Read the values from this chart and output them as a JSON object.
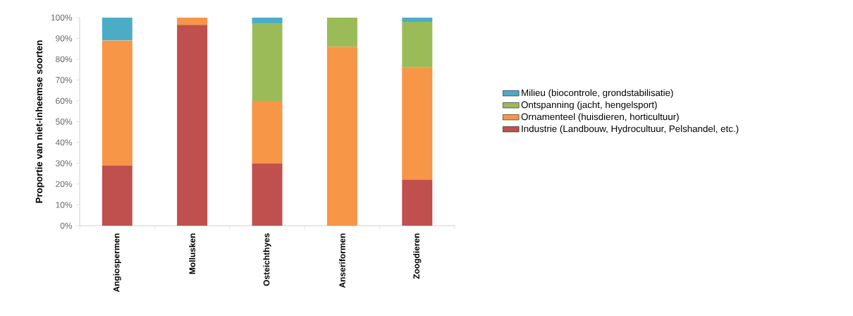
{
  "chart_data": {
    "type": "bar",
    "stacked": true,
    "ylabel": "Proportie van niet-inheemse soorten",
    "categories": [
      "Angiospermen",
      "Mollusken",
      "Osteichthyes",
      "Anseriformen",
      "Zoogdieren"
    ],
    "series": [
      {
        "name": "Industrie (Landbouw, Hydrocultuur, Pelshandel, etc.)",
        "color": "#c0504d",
        "values": [
          29,
          96.5,
          30,
          0,
          22
        ]
      },
      {
        "name": "Ornamenteel (huisdieren, horticultuur)",
        "color": "#f79646",
        "values": [
          60,
          3.5,
          30,
          86,
          54
        ]
      },
      {
        "name": "Ontspanning (jacht, hengelsport)",
        "color": "#9bbb59",
        "values": [
          0,
          0,
          37,
          14,
          22
        ]
      },
      {
        "name": "Milieu (biocontrole, grondstabilisatie)",
        "color": "#4bacc6",
        "values": [
          11,
          0,
          3,
          0,
          2
        ]
      }
    ],
    "ylim": [
      0,
      100
    ],
    "yticks": [
      {
        "value": 0,
        "label": "0%"
      },
      {
        "value": 10,
        "label": "10%"
      },
      {
        "value": 20,
        "label": "20%"
      },
      {
        "value": 30,
        "label": "30%"
      },
      {
        "value": 40,
        "label": "40%"
      },
      {
        "value": 50,
        "label": "50%"
      },
      {
        "value": 60,
        "label": "60%"
      },
      {
        "value": 70,
        "label": "70%"
      },
      {
        "value": 80,
        "label": "80%"
      },
      {
        "value": 90,
        "label": "90%"
      },
      {
        "value": 100,
        "label": "100%"
      }
    ],
    "grid": false,
    "legend": "right"
  }
}
